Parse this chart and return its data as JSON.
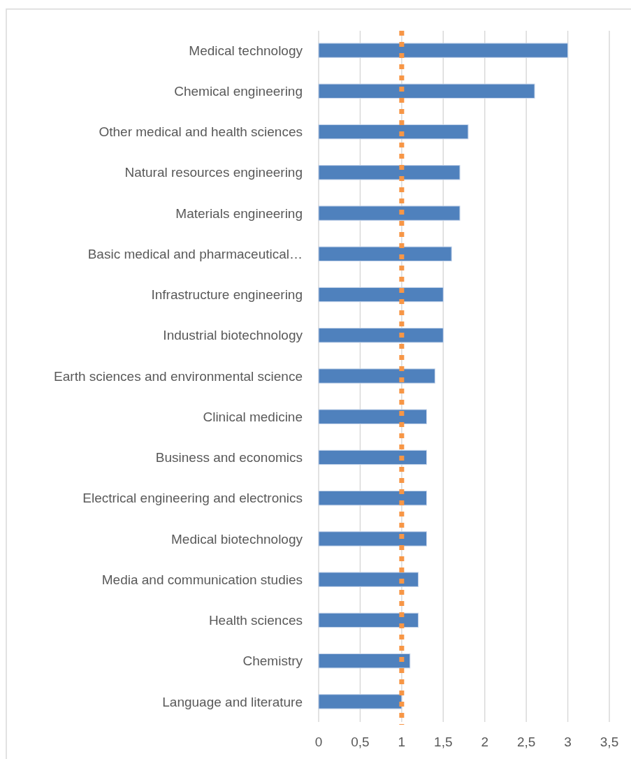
{
  "chart_data": {
    "type": "bar",
    "orientation": "horizontal",
    "categories": [
      "Medical technology",
      "Chemical engineering",
      "Other medical and health sciences",
      "Natural resources engineering",
      "Materials engineering",
      "Basic medical and pharmaceutical…",
      "Infrastructure engineering",
      "Industrial biotechnology",
      "Earth sciences and environmental science",
      "Clinical medicine",
      "Business and economics",
      "Electrical engineering and electronics",
      "Medical biotechnology",
      "Media and communication studies",
      "Health sciences",
      "Chemistry",
      "Language and literature"
    ],
    "values": [
      3.0,
      2.6,
      1.8,
      1.7,
      1.7,
      1.6,
      1.5,
      1.5,
      1.4,
      1.3,
      1.3,
      1.3,
      1.3,
      1.2,
      1.2,
      1.1,
      1.0
    ],
    "color": "#4f81bd",
    "xlim": [
      0,
      3.5
    ],
    "xticks": [
      0,
      {
        "value": 0.5,
        "label": "0,5"
      },
      1,
      {
        "value": 1.5,
        "label": "1,5"
      },
      2,
      {
        "value": 2.5,
        "label": "2,5"
      },
      3,
      {
        "value": 3.5,
        "label": "3,5"
      }
    ],
    "grid": "x",
    "ref_lines": [
      {
        "axis": "x",
        "value": 1,
        "color": "#f79646",
        "line_style": "dotted"
      }
    ]
  }
}
